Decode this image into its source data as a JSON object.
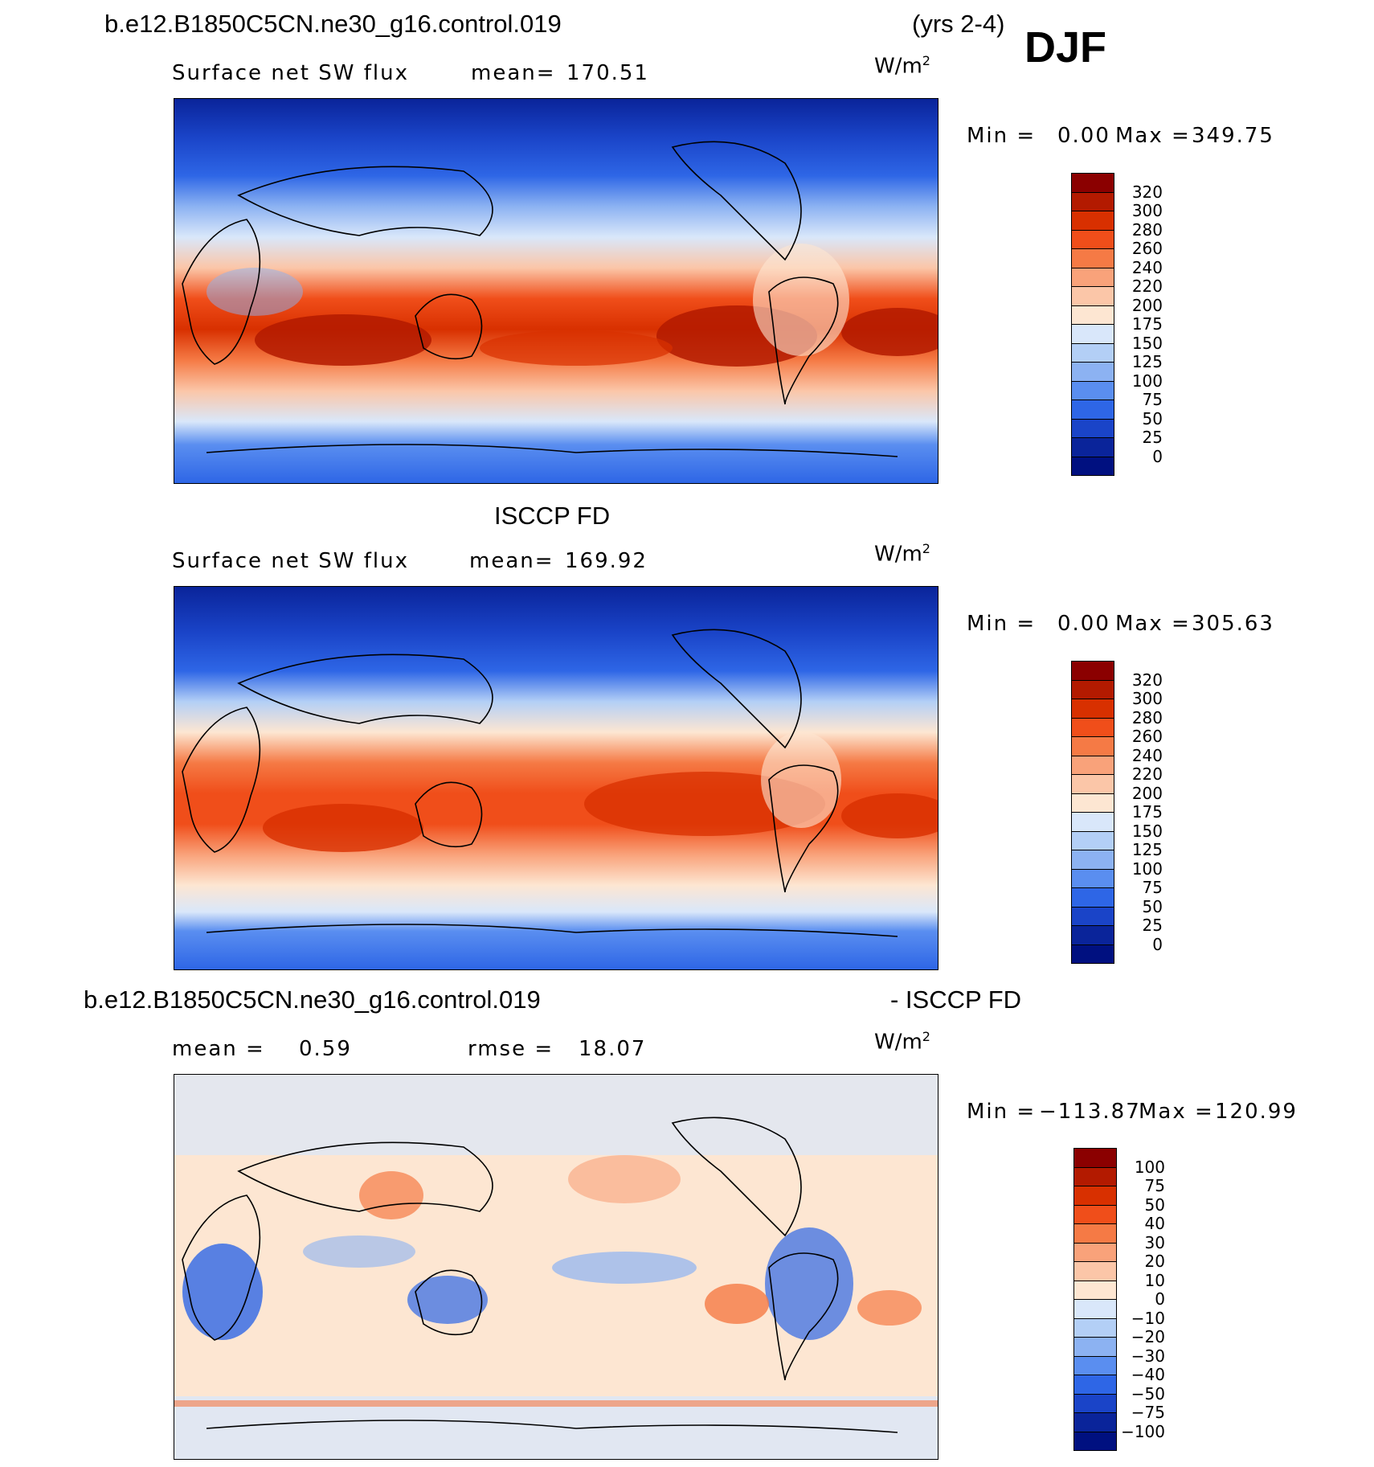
{
  "header": {
    "case_name": "b.e12.B1850C5CN.ne30_g16.control.019",
    "years": "(yrs 2-4)",
    "season": "DJF"
  },
  "chart_data": [
    {
      "type": "heatmap",
      "title": "Surface net SW flux",
      "mean_label": "mean=",
      "mean_value": "170.51",
      "units": "W/m",
      "units_exp": "2",
      "min_label": "Min =",
      "min_value": "0.00",
      "max_label": "Max =",
      "max_value": "349.75",
      "colorbar": {
        "levels": [
          "320",
          "300",
          "280",
          "260",
          "240",
          "220",
          "200",
          "175",
          "150",
          "125",
          "100",
          "75",
          "50",
          "25",
          "0"
        ],
        "colors": [
          "#8b0000",
          "#b31a00",
          "#d83000",
          "#f04e1a",
          "#f57a45",
          "#f9a27a",
          "#fbc6a8",
          "#fde6d2",
          "#d9e7fa",
          "#b3cff6",
          "#8cb2f2",
          "#5a8ef0",
          "#2e66e6",
          "#1a44c8",
          "#0a249a",
          "#001080"
        ]
      }
    },
    {
      "type": "heatmap",
      "subtitle": "ISCCP FD",
      "title": "Surface net SW flux",
      "mean_label": "mean=",
      "mean_value": "169.92",
      "units": "W/m",
      "units_exp": "2",
      "min_label": "Min =",
      "min_value": "0.00",
      "max_label": "Max =",
      "max_value": "305.63",
      "colorbar": {
        "levels": [
          "320",
          "300",
          "280",
          "260",
          "240",
          "220",
          "200",
          "175",
          "150",
          "125",
          "100",
          "75",
          "50",
          "25",
          "0"
        ],
        "colors": [
          "#8b0000",
          "#b31a00",
          "#d83000",
          "#f04e1a",
          "#f57a45",
          "#f9a27a",
          "#fbc6a8",
          "#fde6d2",
          "#d9e7fa",
          "#b3cff6",
          "#8cb2f2",
          "#5a8ef0",
          "#2e66e6",
          "#1a44c8",
          "#0a249a",
          "#001080"
        ]
      }
    },
    {
      "type": "heatmap",
      "diff_left": "b.e12.B1850C5CN.ne30_g16.control.019",
      "diff_right": "- ISCCP FD",
      "mean_label": "mean =",
      "mean_value": "0.59",
      "rmse_label": "rmse =",
      "rmse_value": "18.07",
      "units": "W/m",
      "units_exp": "2",
      "min_label": "Min =",
      "min_value": "−113.87",
      "max_label": "Max =",
      "max_value": "120.99",
      "colorbar": {
        "levels": [
          "100",
          "75",
          "50",
          "40",
          "30",
          "20",
          "10",
          "0",
          "−10",
          "−20",
          "−30",
          "−40",
          "−50",
          "−75",
          "−100"
        ],
        "colors": [
          "#8b0000",
          "#b31a00",
          "#d83000",
          "#f04e1a",
          "#f57a45",
          "#f9a27a",
          "#fbc6a8",
          "#fde6d2",
          "#d9e7fa",
          "#b3cff6",
          "#8cb2f2",
          "#5a8ef0",
          "#2e66e6",
          "#1a44c8",
          "#0a249a",
          "#001080"
        ]
      }
    }
  ]
}
